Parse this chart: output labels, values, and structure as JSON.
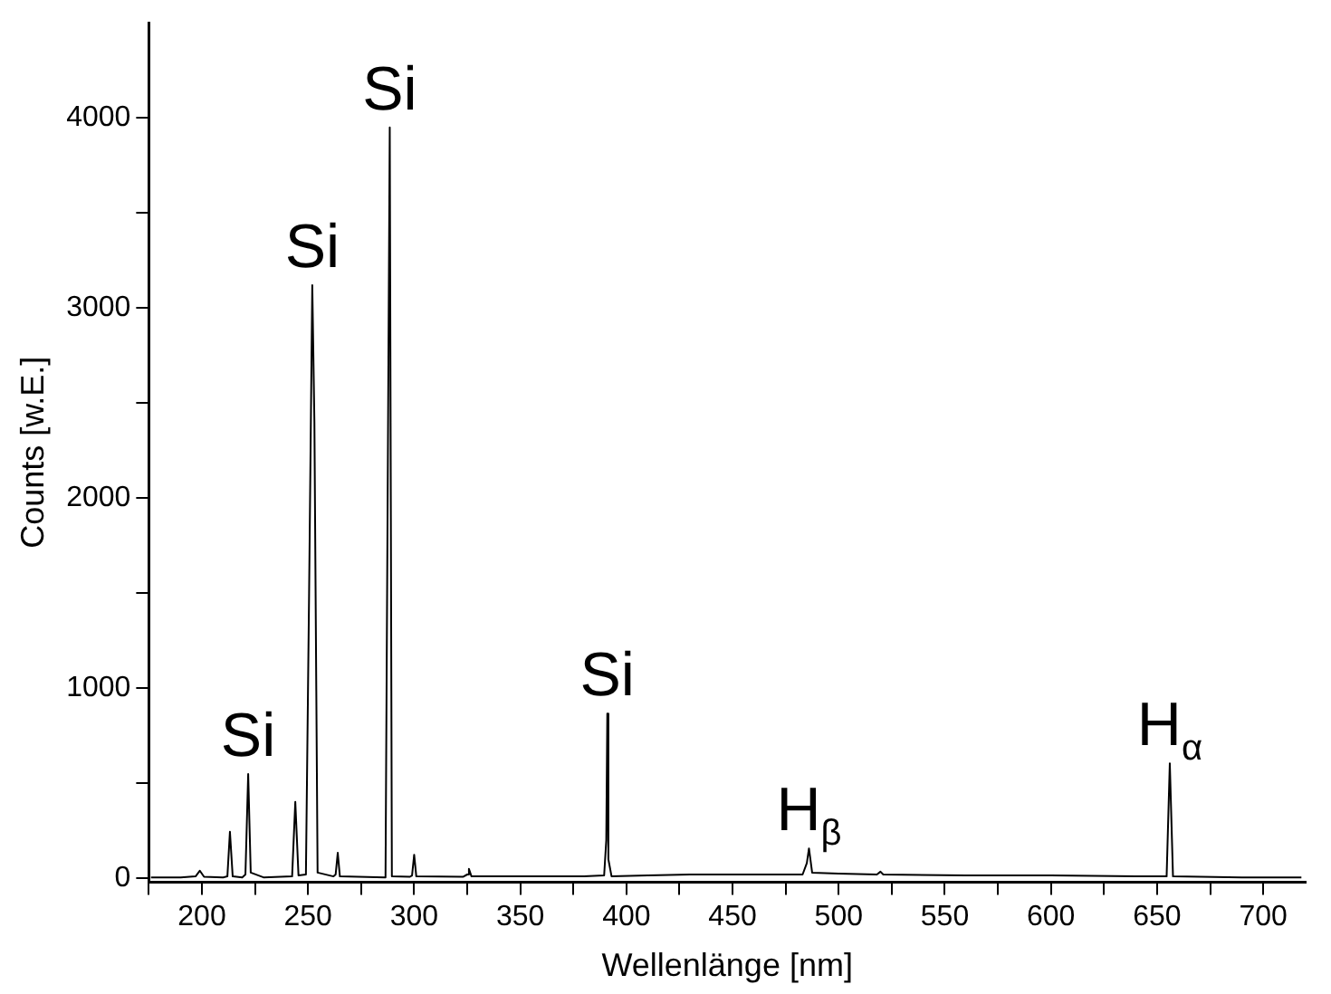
{
  "chart_data": {
    "type": "line",
    "xlabel": "Wellenlänge [nm]",
    "ylabel": "Counts [w.E.]",
    "x": [
      176,
      190,
      197,
      199,
      201,
      210,
      212,
      213.2,
      214.5,
      219,
      220.5,
      221.8,
      223,
      229,
      242.5,
      244,
      245.5,
      249,
      250.5,
      252,
      253,
      254.5,
      262,
      263,
      264,
      265,
      286.5,
      288.5,
      289.5,
      298,
      299,
      300,
      301,
      323,
      325,
      325.8,
      327,
      380,
      389.5,
      390.5,
      391,
      391.5,
      393,
      410,
      430,
      470,
      483,
      485,
      486,
      487.5,
      500,
      518,
      519.7,
      521,
      560,
      600,
      640,
      654.5,
      656,
      657.5,
      690,
      718
    ],
    "series": [
      {
        "color": "#000000",
        "values": [
          5,
          5,
          10,
          40,
          8,
          5,
          10,
          245,
          10,
          5,
          20,
          549,
          30,
          5,
          10,
          402,
          15,
          20,
          1500,
          3120,
          2400,
          30,
          10,
          20,
          134,
          10,
          5,
          3950,
          10,
          8,
          15,
          124,
          10,
          8,
          20,
          50,
          10,
          10,
          15,
          200,
          866,
          100,
          10,
          15,
          20,
          20,
          20,
          80,
          157,
          30,
          25,
          20,
          35,
          20,
          15,
          15,
          10,
          10,
          605,
          10,
          5,
          5
        ]
      }
    ],
    "ylim": [
      -20,
      4500
    ],
    "xlim": [
      175,
      720
    ],
    "yticks": [
      0,
      {
        "value": 500,
        "label": null
      },
      1000,
      {
        "value": 1500,
        "label": null
      },
      2000,
      {
        "value": 2500,
        "label": null
      },
      3000,
      {
        "value": 3500,
        "label": null
      },
      4000
    ],
    "xticks": [
      {
        "value": 175,
        "label": null
      },
      200,
      {
        "value": 225,
        "label": null
      },
      250,
      {
        "value": 275,
        "label": null
      },
      300,
      {
        "value": 325,
        "label": null
      },
      350,
      {
        "value": 375,
        "label": null
      },
      400,
      {
        "value": 425,
        "label": null
      },
      450,
      {
        "value": 475,
        "label": null
      },
      500,
      {
        "value": 525,
        "label": null
      },
      550,
      {
        "value": 575,
        "label": null
      },
      600,
      {
        "value": 625,
        "label": null
      },
      650,
      {
        "value": 675,
        "label": null
      },
      700
    ],
    "annotations": [
      {
        "text": "Si",
        "x": 221.8,
        "y": 549
      },
      {
        "text": "Si",
        "x": 252,
        "y": 3120
      },
      {
        "text": "Si",
        "x": 288.5,
        "y": 3950
      },
      {
        "text": "Si",
        "x": 391,
        "y": 866
      },
      {
        "text": "H$_{β}$",
        "x": 486,
        "y": 157
      },
      {
        "text": "H$_{α}$",
        "x": 656,
        "y": 605
      }
    ],
    "grid": false,
    "legend": false,
    "marker": "none",
    "line_style": "solid"
  }
}
